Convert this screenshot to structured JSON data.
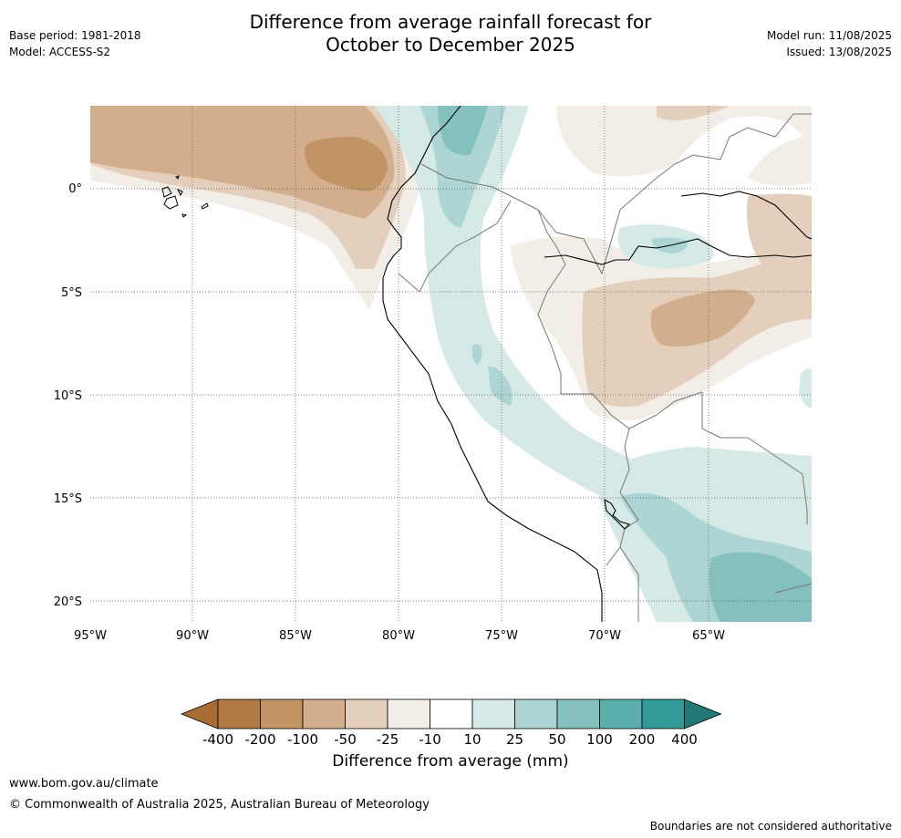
{
  "header": {
    "title_line1": "Difference from average rainfall forecast for",
    "title_line2": "October to December 2025",
    "base_period": "Base period: 1981-2018",
    "model": "Model: ACCESS-S2",
    "model_run": "Model run: 11/08/2025",
    "issued": "Issued: 13/08/2025"
  },
  "map": {
    "lon_labels": [
      "95°W",
      "90°W",
      "85°W",
      "80°W",
      "75°W",
      "70°W",
      "65°W"
    ],
    "lat_labels": [
      "0°",
      "5°S",
      "10°S",
      "15°S",
      "20°S"
    ]
  },
  "colorbar": {
    "label": "Difference from average (mm)",
    "ticks": [
      "-400",
      "-200",
      "-100",
      "-50",
      "-25",
      "-10",
      "10",
      "25",
      "50",
      "100",
      "200",
      "400"
    ],
    "colors": [
      "#a76d35",
      "#b07a44",
      "#c19464",
      "#d2ae8c",
      "#e3cfbc",
      "#f2ede7",
      "#ffffff",
      "#d5e9e7",
      "#acd5d4",
      "#84c1be",
      "#5aaeac",
      "#339a97",
      "#227875"
    ]
  },
  "footer": {
    "url": "www.bom.gov.au/climate",
    "copyright": "© Commonwealth of Australia 2025, Australian Bureau of Meteorology",
    "note": "Boundaries are not considered authoritative"
  }
}
